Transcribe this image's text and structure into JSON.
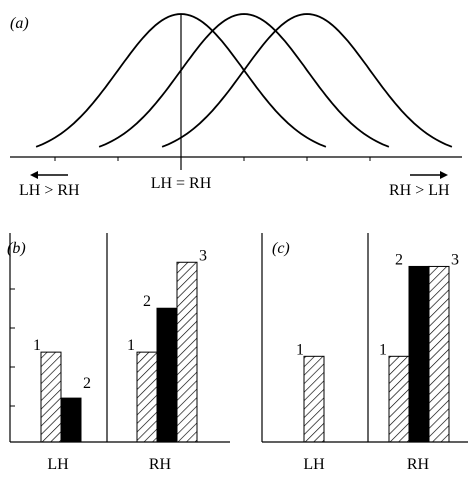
{
  "chart_data": [
    {
      "panel": "(a)",
      "type": "line",
      "center_label": "LH = RH",
      "left_label": "LH > RH",
      "right_label": "RH > LH",
      "series": [
        {
          "mean": 0,
          "sd": 1
        },
        {
          "mean": 1,
          "sd": 1
        },
        {
          "mean": 2,
          "sd": 1
        }
      ],
      "xlim": [
        -2.4,
        4.2
      ]
    },
    {
      "panel": "(b)",
      "type": "bar",
      "categories": [
        "LH",
        "RH"
      ],
      "ylim": [
        0,
        10
      ],
      "groups": [
        {
          "category": "LH",
          "bars": [
            {
              "label": "1",
              "value": 4.3,
              "pattern": "hatch"
            },
            {
              "label": "2",
              "value": 2.1,
              "pattern": "solid"
            }
          ]
        },
        {
          "category": "RH",
          "bars": [
            {
              "label": "1",
              "value": 4.3,
              "pattern": "hatch"
            },
            {
              "label": "2",
              "value": 6.4,
              "pattern": "solid"
            },
            {
              "label": "3",
              "value": 8.6,
              "pattern": "hatch"
            }
          ]
        }
      ]
    },
    {
      "panel": "(c)",
      "type": "bar",
      "categories": [
        "LH",
        "RH"
      ],
      "ylim": [
        0,
        10
      ],
      "groups": [
        {
          "category": "LH",
          "bars": [
            {
              "label": "1",
              "value": 4.1,
              "pattern": "hatch"
            }
          ]
        },
        {
          "category": "RH",
          "bars": [
            {
              "label": "1",
              "value": 4.1,
              "pattern": "hatch"
            },
            {
              "label": "2",
              "value": 8.4,
              "pattern": "solid"
            },
            {
              "label": "3",
              "value": 8.4,
              "pattern": "hatch"
            }
          ]
        }
      ]
    }
  ]
}
